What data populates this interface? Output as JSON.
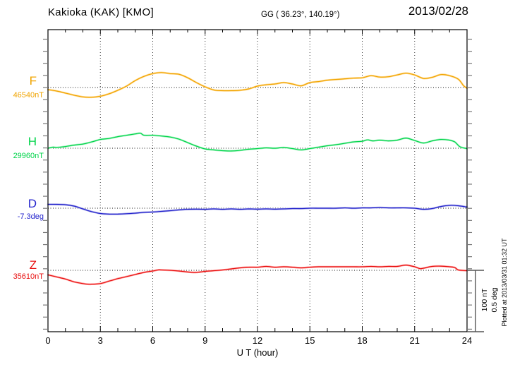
{
  "header": {
    "title": "Kakioka (KAK)  [KMO]",
    "coordinates": "GG ( 36.23°, 140.19°)",
    "date": "2013/02/28"
  },
  "plotted_at": "Plotted at 2013/03/31 01:32 UT",
  "scale_bar": {
    "labels": [
      "100 nT",
      "0.5 deg"
    ]
  },
  "axis": {
    "xlabel": "U T (hour)"
  },
  "chart_data": {
    "type": "line",
    "title": "Kakioka (KAK) [KMO]",
    "subtitle": "GG ( 36.23°, 140.19°)",
    "date": "2013/02/28",
    "xlabel": "U T (hour)",
    "xlim": [
      0,
      24
    ],
    "xticks": [
      0,
      3,
      6,
      9,
      12,
      15,
      18,
      21,
      24
    ],
    "grid": "vertical-dotted-every-3h, dotted baseline per component",
    "scale": {
      "bar_nT": 100,
      "bar_deg": 0.5,
      "tick_step_nT": 20
    },
    "series": [
      {
        "name": "F",
        "unit": "nT",
        "baseline_label": "46540nT",
        "baseline_value": 46540,
        "color": "#F0A400",
        "halo": "#FFD98F",
        "points": [
          [
            0,
            -3.4
          ],
          [
            0.5,
            -5.7
          ],
          [
            1,
            -9.1
          ],
          [
            1.5,
            -12.5
          ],
          [
            2,
            -15.3
          ],
          [
            2.5,
            -15.9
          ],
          [
            3,
            -14.2
          ],
          [
            3.5,
            -10.2
          ],
          [
            4,
            -4.5
          ],
          [
            4.5,
            2.3
          ],
          [
            5,
            11.4
          ],
          [
            5.5,
            18.2
          ],
          [
            6,
            22.7
          ],
          [
            6.5,
            24.4
          ],
          [
            7,
            22.7
          ],
          [
            7.5,
            21.6
          ],
          [
            8,
            15.9
          ],
          [
            8.5,
            8
          ],
          [
            9,
            1.1
          ],
          [
            9.5,
            -4
          ],
          [
            10,
            -5.1
          ],
          [
            10.5,
            -5.1
          ],
          [
            11,
            -4.5
          ],
          [
            11.5,
            -2.3
          ],
          [
            12,
            2.3
          ],
          [
            12.5,
            4.5
          ],
          [
            13,
            5.7
          ],
          [
            13.5,
            8
          ],
          [
            14,
            5.7
          ],
          [
            14.5,
            2.8
          ],
          [
            15,
            8
          ],
          [
            15.5,
            9.7
          ],
          [
            16,
            11.9
          ],
          [
            16.5,
            13.1
          ],
          [
            17,
            14.2
          ],
          [
            17.5,
            15.3
          ],
          [
            18,
            15.9
          ],
          [
            18.5,
            19.3
          ],
          [
            19,
            17
          ],
          [
            19.5,
            17.6
          ],
          [
            20,
            20.5
          ],
          [
            20.5,
            23.3
          ],
          [
            21,
            20.5
          ],
          [
            21.5,
            14.8
          ],
          [
            22,
            16.5
          ],
          [
            22.5,
            21
          ],
          [
            23,
            19.3
          ],
          [
            23.5,
            13.6
          ],
          [
            23.8,
            3
          ],
          [
            24,
            -1.1
          ]
        ]
      },
      {
        "name": "H",
        "unit": "nT",
        "baseline_label": "29960nT",
        "baseline_value": 29960,
        "color": "#00D44A",
        "halo": "#A5F2C0",
        "points": [
          [
            0,
            0
          ],
          [
            0.3,
            1.7
          ],
          [
            0.5,
            1.1
          ],
          [
            1,
            2.8
          ],
          [
            1.5,
            5.1
          ],
          [
            2,
            6.8
          ],
          [
            2.5,
            10.2
          ],
          [
            3,
            14.2
          ],
          [
            3.5,
            15.9
          ],
          [
            4,
            18.8
          ],
          [
            4.5,
            21
          ],
          [
            5,
            23.3
          ],
          [
            5.3,
            24.4
          ],
          [
            5.5,
            21
          ],
          [
            6,
            21
          ],
          [
            6.5,
            19.9
          ],
          [
            7,
            18.2
          ],
          [
            7.5,
            14.8
          ],
          [
            8,
            9.1
          ],
          [
            8.5,
            3.4
          ],
          [
            9,
            -1.1
          ],
          [
            9.5,
            -2.8
          ],
          [
            10,
            -4
          ],
          [
            10.5,
            -4.5
          ],
          [
            11,
            -3.4
          ],
          [
            11.5,
            -1.7
          ],
          [
            12,
            -0.6
          ],
          [
            12.5,
            0.6
          ],
          [
            13,
            0
          ],
          [
            13.5,
            1.1
          ],
          [
            14,
            -0.6
          ],
          [
            14.5,
            -2.8
          ],
          [
            15,
            -0.6
          ],
          [
            15.5,
            1.7
          ],
          [
            16,
            4
          ],
          [
            16.5,
            5.7
          ],
          [
            17,
            8
          ],
          [
            17.5,
            10.2
          ],
          [
            18,
            11.4
          ],
          [
            18.3,
            13.6
          ],
          [
            18.6,
            11.9
          ],
          [
            19,
            13.1
          ],
          [
            19.5,
            11.9
          ],
          [
            20,
            13.1
          ],
          [
            20.5,
            16.5
          ],
          [
            21,
            12.5
          ],
          [
            21.5,
            8.5
          ],
          [
            22,
            11.9
          ],
          [
            22.5,
            14.2
          ],
          [
            23,
            13.1
          ],
          [
            23.3,
            10.2
          ],
          [
            23.6,
            2.3
          ],
          [
            24,
            -0.6
          ]
        ]
      },
      {
        "name": "D",
        "unit": "deg",
        "baseline_label": "-7.3deg",
        "baseline_value": -7.3,
        "color": "#2424CC",
        "halo": "#A6A6EA",
        "points": [
          [
            0,
            0.031
          ],
          [
            0.5,
            0.031
          ],
          [
            1,
            0.028
          ],
          [
            1.5,
            0.017
          ],
          [
            2,
            -0.006
          ],
          [
            2.5,
            -0.028
          ],
          [
            3,
            -0.043
          ],
          [
            3.5,
            -0.048
          ],
          [
            4,
            -0.048
          ],
          [
            4.5,
            -0.045
          ],
          [
            5,
            -0.04
          ],
          [
            5.5,
            -0.034
          ],
          [
            6,
            -0.031
          ],
          [
            6.5,
            -0.026
          ],
          [
            7,
            -0.02
          ],
          [
            7.5,
            -0.014
          ],
          [
            8,
            -0.009
          ],
          [
            8.5,
            -0.008
          ],
          [
            9,
            -0.009
          ],
          [
            9.5,
            -0.006
          ],
          [
            10,
            -0.009
          ],
          [
            10.5,
            -0.006
          ],
          [
            11,
            -0.009
          ],
          [
            11.5,
            -0.006
          ],
          [
            12,
            -0.008
          ],
          [
            12.5,
            -0.006
          ],
          [
            13,
            -0.008
          ],
          [
            13.5,
            -0.006
          ],
          [
            14,
            -0.003
          ],
          [
            14.5,
            -0.003
          ],
          [
            15,
            0
          ],
          [
            15.5,
            0
          ],
          [
            16,
            0
          ],
          [
            16.5,
            0
          ],
          [
            17,
            0.003
          ],
          [
            17.5,
            0
          ],
          [
            18,
            0.003
          ],
          [
            18.5,
            0.003
          ],
          [
            19,
            0.006
          ],
          [
            19.5,
            0.003
          ],
          [
            20,
            0.003
          ],
          [
            20.5,
            0.003
          ],
          [
            21,
            0
          ],
          [
            21.5,
            -0.009
          ],
          [
            22,
            -0.003
          ],
          [
            22.5,
            0.014
          ],
          [
            23,
            0.023
          ],
          [
            23.5,
            0.02
          ],
          [
            24,
            0.009
          ]
        ]
      },
      {
        "name": "Z",
        "unit": "nT",
        "baseline_label": "35610nT",
        "baseline_value": 35610,
        "color": "#E81010",
        "halo": "#FFA3A3",
        "points": [
          [
            0,
            -7.4
          ],
          [
            0.5,
            -10.8
          ],
          [
            1,
            -14.2
          ],
          [
            1.5,
            -18.8
          ],
          [
            2,
            -21.6
          ],
          [
            2.3,
            -22.7
          ],
          [
            2.5,
            -22.7
          ],
          [
            3,
            -21.6
          ],
          [
            3.5,
            -17.6
          ],
          [
            4,
            -13.6
          ],
          [
            4.5,
            -10.2
          ],
          [
            5,
            -6.8
          ],
          [
            5.5,
            -3.4
          ],
          [
            6,
            -1.1
          ],
          [
            6.3,
            0.6
          ],
          [
            6.5,
            0.6
          ],
          [
            7,
            0
          ],
          [
            7.5,
            -1.1
          ],
          [
            8,
            -2.8
          ],
          [
            8.5,
            -3.4
          ],
          [
            9,
            -1.7
          ],
          [
            9.5,
            -0.6
          ],
          [
            10,
            0.6
          ],
          [
            10.5,
            2.3
          ],
          [
            11,
            4
          ],
          [
            11.5,
            5.1
          ],
          [
            12,
            5.1
          ],
          [
            12.5,
            6.3
          ],
          [
            13,
            5.1
          ],
          [
            13.5,
            5.7
          ],
          [
            14,
            5.1
          ],
          [
            14.5,
            4
          ],
          [
            15,
            5.1
          ],
          [
            15.5,
            5.7
          ],
          [
            16,
            5.7
          ],
          [
            16.5,
            5.7
          ],
          [
            17,
            5.7
          ],
          [
            17.5,
            5.7
          ],
          [
            18,
            5.7
          ],
          [
            18.5,
            6.3
          ],
          [
            19,
            5.7
          ],
          [
            19.5,
            6.3
          ],
          [
            20,
            6.3
          ],
          [
            20.5,
            8.5
          ],
          [
            21,
            5.7
          ],
          [
            21.3,
            2.8
          ],
          [
            21.5,
            3.4
          ],
          [
            22,
            6.3
          ],
          [
            22.5,
            6.8
          ],
          [
            23,
            5.7
          ],
          [
            23.3,
            4.5
          ],
          [
            23.5,
            0.6
          ],
          [
            24,
            -0.6
          ]
        ]
      }
    ]
  }
}
